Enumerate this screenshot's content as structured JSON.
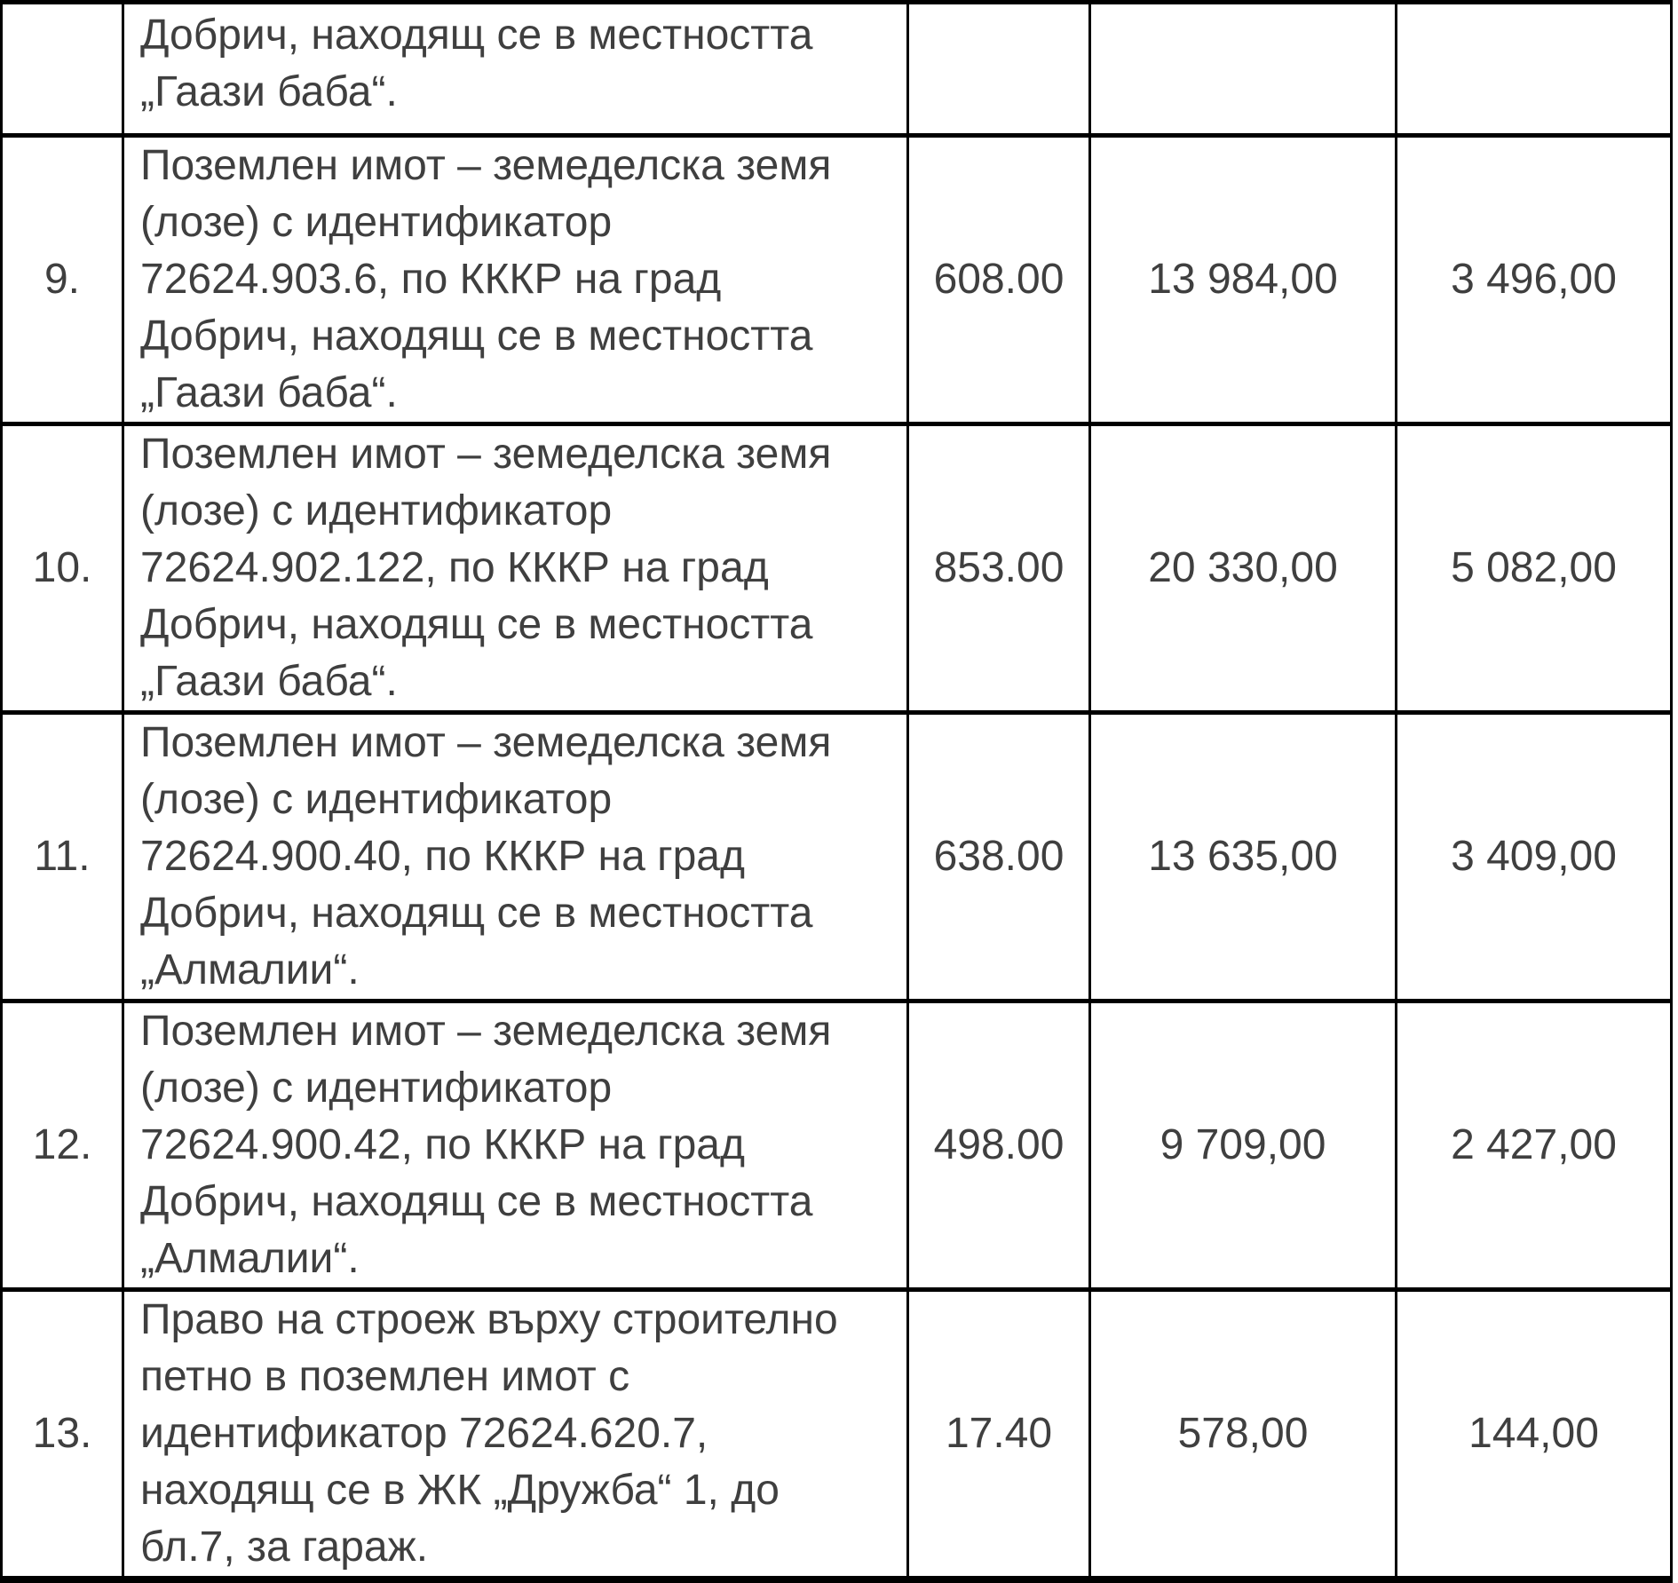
{
  "colors": {
    "text": "#3f3f3f",
    "border": "#000000",
    "background": "#ffffff"
  },
  "table": {
    "partial_row": {
      "description": "Добрич, находящ се в местността\n„Гаази баба“."
    },
    "rows": [
      {
        "number": "9.",
        "description": "Поземлен имот – земеделска земя\n(лозе) с идентификатор\n72624.903.6, по КККР на град\nДобрич, находящ се в местността\n„Гаази баба“.",
        "value1": "608.00",
        "value2": "13 984,00",
        "value3": "3 496,00"
      },
      {
        "number": "10.",
        "description": "Поземлен имот – земеделска земя\n(лозе) с идентификатор\n72624.902.122, по КККР на град\nДобрич, находящ се в местността\n„Гаази баба“.",
        "value1": "853.00",
        "value2": "20 330,00",
        "value3": "5 082,00"
      },
      {
        "number": "11.",
        "description": "Поземлен имот – земеделска земя\n(лозе) с идентификатор\n72624.900.40, по КККР на град\nДобрич, находящ се в местността\n„Алмалии“.",
        "value1": "638.00",
        "value2": "13 635,00",
        "value3": "3 409,00"
      },
      {
        "number": "12.",
        "description": "Поземлен имот – земеделска земя\n(лозе) с идентификатор\n72624.900.42, по КККР на град\nДобрич, находящ се в местността\n„Алмалии“.",
        "value1": "498.00",
        "value2": "9 709,00",
        "value3": "2 427,00"
      },
      {
        "number": "13.",
        "description": "Право на строеж върху строително\nпетно в поземлен имот с\nидентификатор 72624.620.7,\nнаходящ се в ЖК „Дружба“ 1, до\nбл.7, за гараж.",
        "value1": "17.40",
        "value2": "578,00",
        "value3": "144,00"
      }
    ]
  }
}
